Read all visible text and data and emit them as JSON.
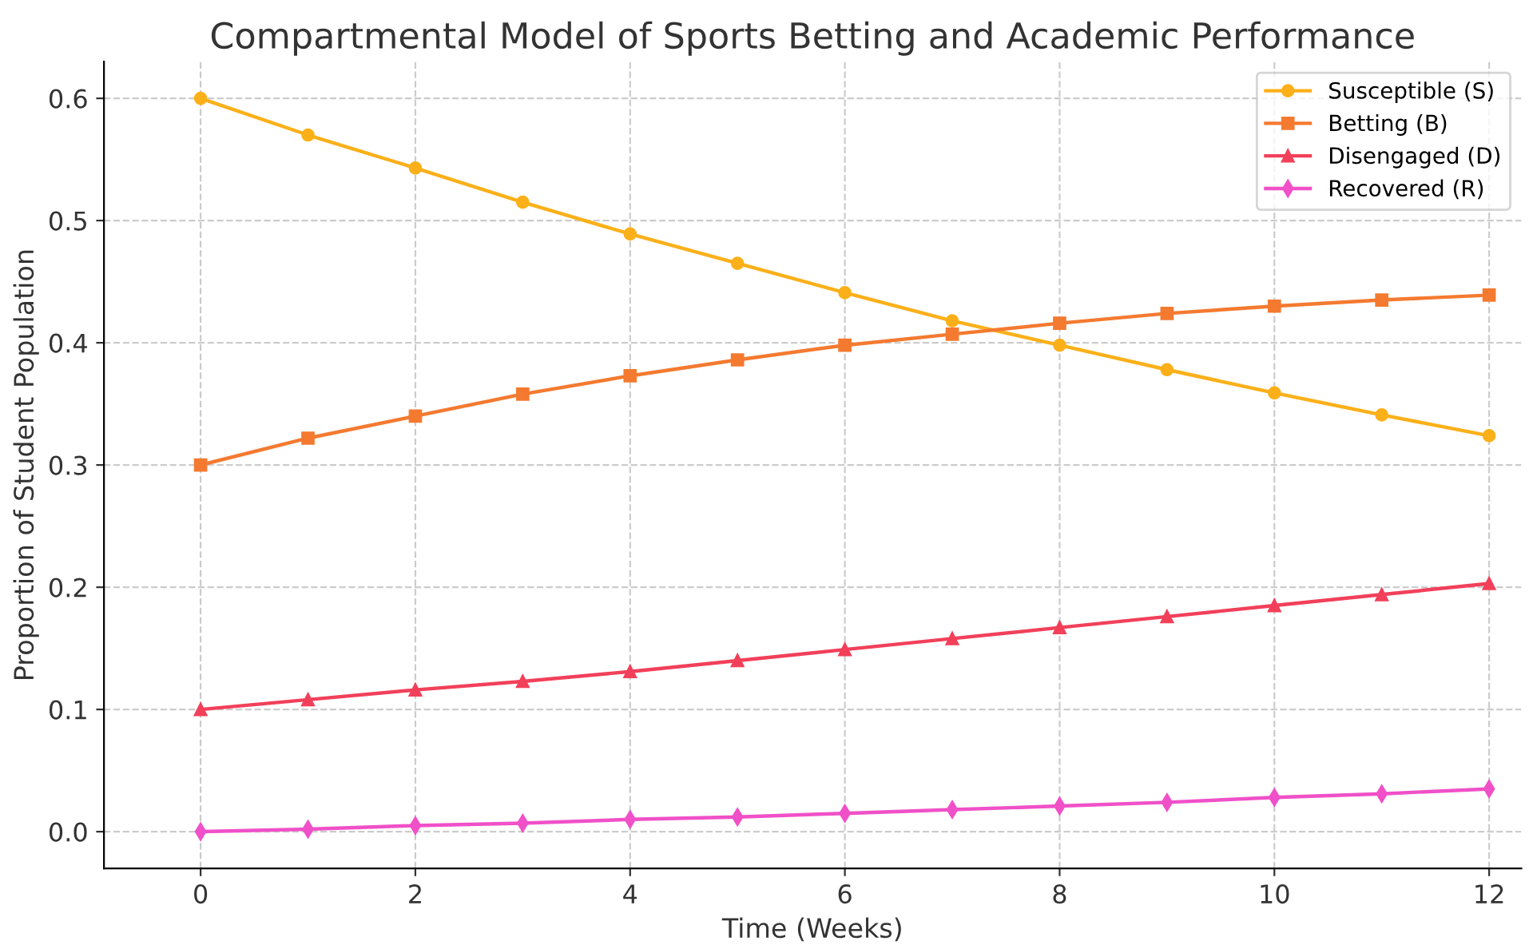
{
  "chart_data": {
    "type": "line",
    "title": "Compartmental Model of Sports Betting and Academic Performance",
    "xlabel": "Time (Weeks)",
    "ylabel": "Proportion of Student Population",
    "x": [
      0,
      1,
      2,
      3,
      4,
      5,
      6,
      7,
      8,
      9,
      10,
      11,
      12
    ],
    "series": [
      {
        "name": "Susceptible (S)",
        "color": "#fbb01a",
        "marker": "circle",
        "values": [
          0.6,
          0.57,
          0.543,
          0.515,
          0.489,
          0.465,
          0.441,
          0.418,
          0.398,
          0.378,
          0.359,
          0.341,
          0.324
        ]
      },
      {
        "name": "Betting (B)",
        "color": "#f47a30",
        "marker": "square",
        "values": [
          0.3,
          0.322,
          0.34,
          0.358,
          0.373,
          0.386,
          0.398,
          0.407,
          0.416,
          0.424,
          0.43,
          0.435,
          0.439
        ]
      },
      {
        "name": "Disengaged (D)",
        "color": "#f2405a",
        "marker": "triangle",
        "values": [
          0.1,
          0.108,
          0.116,
          0.123,
          0.131,
          0.14,
          0.149,
          0.158,
          0.167,
          0.176,
          0.185,
          0.194,
          0.203
        ]
      },
      {
        "name": "Recovered (R)",
        "color": "#f050c8",
        "marker": "diamond",
        "values": [
          0.0,
          0.002,
          0.005,
          0.007,
          0.01,
          0.012,
          0.015,
          0.018,
          0.021,
          0.024,
          0.028,
          0.031,
          0.035
        ]
      }
    ],
    "xlim": [
      -0.9,
      12.3
    ],
    "ylim": [
      -0.03,
      0.63
    ],
    "xticks": [
      0,
      2,
      4,
      6,
      8,
      10,
      12
    ],
    "yticks": [
      {
        "value": 0,
        "label": "0.0"
      },
      0.1,
      0.2,
      0.3,
      0.4,
      0.5,
      0.6
    ],
    "grid": true,
    "legend": "top right"
  }
}
